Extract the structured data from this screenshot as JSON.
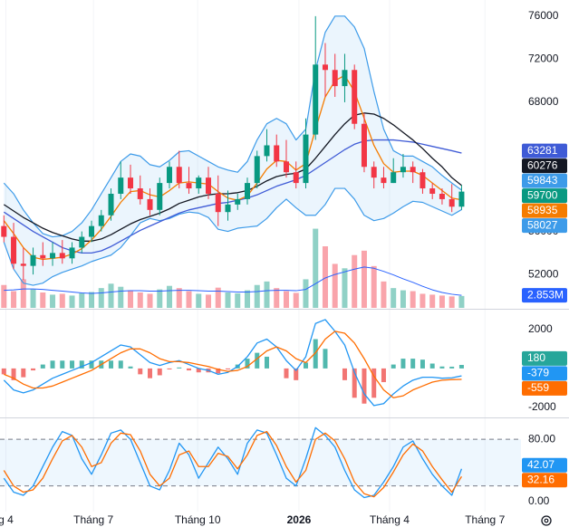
{
  "chart_data": [
    {
      "type": "candlestick",
      "x": [
        0,
        1,
        2,
        3,
        4,
        5,
        6,
        7,
        8,
        9,
        10,
        11,
        12,
        13,
        14,
        15,
        16,
        17,
        18,
        19,
        20,
        21,
        22,
        23,
        24,
        25,
        26,
        27,
        28,
        29,
        30,
        31,
        32,
        33,
        34,
        35,
        36,
        37,
        38,
        39,
        40,
        41,
        42,
        43,
        44,
        45,
        46,
        47
      ],
      "xlim": [
        -0.4,
        53.1
      ],
      "open": [
        56500,
        55500,
        53000,
        52800,
        53800,
        53500,
        54000,
        53500,
        54500,
        55500,
        56500,
        57500,
        59500,
        61000,
        60000,
        59000,
        58000,
        60500,
        62000,
        60500,
        60000,
        61000,
        59500,
        57800,
        58500,
        59000,
        60500,
        63000,
        64000,
        62500,
        61500,
        60500,
        65000,
        71500,
        71000,
        69500,
        71000,
        66000,
        62000,
        61000,
        60500,
        61500,
        62000,
        61500,
        60000,
        59500,
        59000,
        58300
      ],
      "high": [
        57500,
        56800,
        54500,
        54500,
        55000,
        55000,
        55200,
        55000,
        56000,
        57000,
        58000,
        60000,
        62500,
        62200,
        61200,
        60000,
        61000,
        62500,
        63500,
        62000,
        61200,
        62000,
        61200,
        59800,
        59500,
        61000,
        63500,
        65500,
        65000,
        64500,
        62500,
        66500,
        76000,
        73500,
        72500,
        72500,
        71500,
        67000,
        62500,
        62000,
        62800,
        63200,
        62500,
        61800,
        60500,
        60000,
        60400,
        60300
      ],
      "low": [
        55000,
        52500,
        51500,
        52000,
        52800,
        52800,
        53000,
        53000,
        54000,
        55000,
        56000,
        57000,
        59000,
        59500,
        58500,
        57500,
        57500,
        60000,
        60000,
        59500,
        59500,
        59000,
        56500,
        57000,
        58000,
        58500,
        60000,
        62500,
        62000,
        61000,
        60000,
        60000,
        64500,
        68500,
        68500,
        68000,
        65500,
        61500,
        60000,
        60000,
        60500,
        61000,
        60500,
        59500,
        59000,
        58500,
        57800,
        58000
      ],
      "close": [
        55500,
        53000,
        52800,
        53800,
        53500,
        54000,
        53500,
        54500,
        55500,
        56500,
        57500,
        59500,
        61000,
        60000,
        59000,
        58000,
        60500,
        62000,
        60500,
        60000,
        61000,
        59500,
        57800,
        58500,
        59000,
        60500,
        63000,
        64000,
        62500,
        61500,
        60500,
        65000,
        71500,
        71000,
        69500,
        71000,
        66000,
        62000,
        61000,
        60500,
        61500,
        62000,
        61500,
        60000,
        59500,
        59000,
        58300,
        59700
      ],
      "up_color": "#089981",
      "down_color": "#f23645",
      "ylim": [
        48900,
        77500
      ],
      "yticks": [
        52000,
        56000,
        68000,
        72000,
        76000
      ],
      "grid": false,
      "series": [
        {
          "color": "#3f5bd6",
          "values": [
            57800,
            57200,
            56600,
            56000,
            55500,
            55000,
            54500,
            54200,
            54000,
            54000,
            54200,
            54600,
            55100,
            55600,
            56100,
            56500,
            56900,
            57300,
            57700,
            58000,
            58200,
            58400,
            58600,
            58700,
            58900,
            59100,
            59400,
            59800,
            60200,
            60500,
            60800,
            61200,
            61800,
            62400,
            63000,
            63600,
            64100,
            64400,
            64500,
            64500,
            64500,
            64400,
            64300,
            64100,
            63900,
            63700,
            63500,
            63281
          ]
        },
        {
          "color": "#131722",
          "values": [
            58500,
            57900,
            57300,
            56800,
            56300,
            55900,
            55600,
            55300,
            55100,
            55100,
            55300,
            55700,
            56200,
            56700,
            57100,
            57400,
            57700,
            58100,
            58600,
            58900,
            59200,
            59400,
            59500,
            59500,
            59600,
            59800,
            60200,
            60700,
            61100,
            61300,
            61400,
            61800,
            62800,
            63900,
            65000,
            66000,
            66800,
            67000,
            66900,
            66500,
            65900,
            65200,
            64500,
            63700,
            62800,
            62000,
            61000,
            60276
          ]
        },
        {
          "color": "#f57c00",
          "values": [
            57000,
            55800,
            54500,
            53600,
            53400,
            53500,
            53600,
            53900,
            54400,
            55200,
            56200,
            57400,
            58700,
            59700,
            59800,
            59400,
            59200,
            59800,
            60500,
            60600,
            60500,
            60400,
            59700,
            59100,
            58900,
            59300,
            60500,
            61800,
            62600,
            62500,
            61700,
            62300,
            65500,
            68500,
            70000,
            70500,
            69000,
            66500,
            64000,
            62300,
            61500,
            61600,
            61600,
            61200,
            60500,
            59800,
            59100,
            58935
          ]
        }
      ],
      "bollinger": {
        "color": "#3d9be9",
        "upper": [
          60500,
          59500,
          58000,
          56800,
          55800,
          55500,
          55600,
          56000,
          56800,
          58000,
          59500,
          61000,
          62500,
          63200,
          63000,
          62200,
          62000,
          62600,
          63400,
          63500,
          63000,
          62500,
          62000,
          61700,
          61500,
          62500,
          64500,
          66000,
          66500,
          66000,
          64500,
          65500,
          71000,
          74500,
          76000,
          76000,
          75000,
          73000,
          69000,
          65500,
          63500,
          63000,
          63000,
          62500,
          62000,
          61200,
          60500,
          59843
        ],
        "lower": [
          55000,
          52500,
          51200,
          51000,
          51200,
          51800,
          52200,
          52500,
          52800,
          53200,
          53500,
          53800,
          54500,
          55600,
          56800,
          57200,
          57000,
          57200,
          57600,
          57800,
          57700,
          57300,
          56200,
          56000,
          56300,
          56400,
          56500,
          57200,
          58200,
          59000,
          58200,
          57500,
          57500,
          58500,
          60000,
          60000,
          59000,
          57500,
          57000,
          57200,
          57700,
          58300,
          58800,
          58700,
          58300,
          57900,
          57500,
          58027
        ]
      },
      "volume": {
        "y2lim": [
          0,
          70000000
        ],
        "ma_color": "#2962ff",
        "ma_label": "2.853M",
        "values": [
          5200000,
          3800000,
          6500000,
          4200000,
          3500000,
          3000000,
          3200000,
          2800000,
          3300000,
          3600000,
          4500000,
          5500000,
          4800000,
          4000000,
          3500000,
          3200000,
          4200000,
          5000000,
          4500000,
          3800000,
          3200000,
          3000000,
          4600000,
          3500000,
          3300000,
          4000000,
          5200000,
          6000000,
          4500000,
          3800000,
          3400000,
          6500000,
          18000000,
          14000000,
          10000000,
          9000000,
          12000000,
          13000000,
          9500000,
          6000000,
          4500000,
          4000000,
          3800000,
          3200000,
          3000000,
          2800000,
          2600000,
          2700000
        ],
        "ma": [
          4000000,
          4100000,
          4300000,
          4300000,
          4200000,
          4000000,
          3800000,
          3600000,
          3400000,
          3300000,
          3400000,
          3600000,
          3800000,
          3900000,
          3900000,
          3800000,
          3800000,
          3900000,
          4000000,
          4000000,
          3900000,
          3800000,
          3800000,
          3700000,
          3600000,
          3600000,
          3700000,
          3900000,
          4000000,
          4000000,
          3900000,
          4200000,
          5500000,
          6800000,
          7600000,
          8200000,
          8800000,
          9300000,
          9000000,
          8300000,
          7500000,
          6600000,
          5800000,
          4900000,
          4100000,
          3500000,
          3100000,
          2853000
        ]
      }
    },
    {
      "type": "macd",
      "ylim": [
        -2460,
        2960
      ],
      "yticks": [
        2000,
        -2000
      ],
      "histogram": {
        "up_color": "#26a69a",
        "down_color": "#ef5350",
        "values": [
          -300,
          -600,
          -450,
          -100,
          200,
          400,
          400,
          400,
          400,
          400,
          400,
          400,
          400,
          100,
          -300,
          -500,
          -350,
          -50,
          50,
          -100,
          -200,
          -200,
          -250,
          -50,
          200,
          500,
          800,
          600,
          0,
          -500,
          -600,
          300,
          1500,
          1000,
          0,
          -600,
          -1500,
          -1800,
          -1500,
          -700,
          200,
          500,
          500,
          450,
          250,
          100,
          90,
          180
        ]
      },
      "macd": {
        "color": "#2196f3",
        "values": [
          -600,
          -1100,
          -1250,
          -1100,
          -800,
          -500,
          -300,
          -100,
          100,
          300,
          600,
          900,
          1200,
          1100,
          700,
          300,
          150,
          300,
          400,
          200,
          0,
          -100,
          -300,
          -200,
          100,
          600,
          1300,
          1500,
          1100,
          400,
          -100,
          600,
          2300,
          2500,
          1900,
          1200,
          -200,
          -1300,
          -1900,
          -1800,
          -1300,
          -900,
          -600,
          -450,
          -450,
          -500,
          -480,
          -379
        ]
      },
      "signal": {
        "color": "#ff6d00",
        "values": [
          -300,
          -500,
          -800,
          -1000,
          -1000,
          -900,
          -700,
          -500,
          -300,
          -100,
          200,
          500,
          800,
          1000,
          1000,
          800,
          500,
          350,
          350,
          300,
          200,
          100,
          -50,
          -150,
          -100,
          100,
          500,
          900,
          1100,
          900,
          500,
          300,
          800,
          1500,
          1900,
          1800,
          1300,
          500,
          -400,
          -1100,
          -1500,
          -1400,
          -1100,
          -900,
          -700,
          -600,
          -570,
          -559
        ]
      }
    },
    {
      "type": "stochastic",
      "ylim": [
        -13,
        107
      ],
      "yticks": [
        {
          "value": 80,
          "label": "80.00"
        },
        {
          "value": 0,
          "label": "0.00"
        }
      ],
      "band": [
        20,
        80
      ],
      "k": {
        "color": "#2196f3",
        "values": [
          30,
          12,
          8,
          20,
          45,
          70,
          90,
          85,
          55,
          35,
          60,
          88,
          92,
          80,
          50,
          20,
          15,
          40,
          75,
          60,
          30,
          50,
          70,
          55,
          35,
          75,
          92,
          88,
          60,
          30,
          20,
          55,
          95,
          85,
          70,
          40,
          15,
          5,
          8,
          25,
          45,
          70,
          78,
          55,
          35,
          20,
          8,
          42.07
        ]
      },
      "d": {
        "color": "#ff6d00",
        "values": [
          40,
          20,
          12,
          15,
          30,
          55,
          78,
          85,
          70,
          45,
          50,
          75,
          88,
          86,
          65,
          35,
          20,
          30,
          60,
          65,
          45,
          45,
          62,
          58,
          42,
          60,
          85,
          90,
          72,
          45,
          25,
          40,
          80,
          88,
          78,
          55,
          25,
          10,
          6,
          18,
          38,
          60,
          74,
          65,
          45,
          28,
          12,
          32.16
        ]
      },
      "xticks": [
        {
          "value": 0.2,
          "label": "g 4"
        },
        {
          "value": 9.2,
          "label": "Tháng 7"
        },
        {
          "value": 19.9,
          "label": "Tháng 10"
        },
        {
          "value": 30.3,
          "label": "2026"
        },
        {
          "value": 39.6,
          "label": "Tháng 4"
        },
        {
          "value": 49.4,
          "label": "Tháng 7"
        }
      ]
    }
  ]
}
